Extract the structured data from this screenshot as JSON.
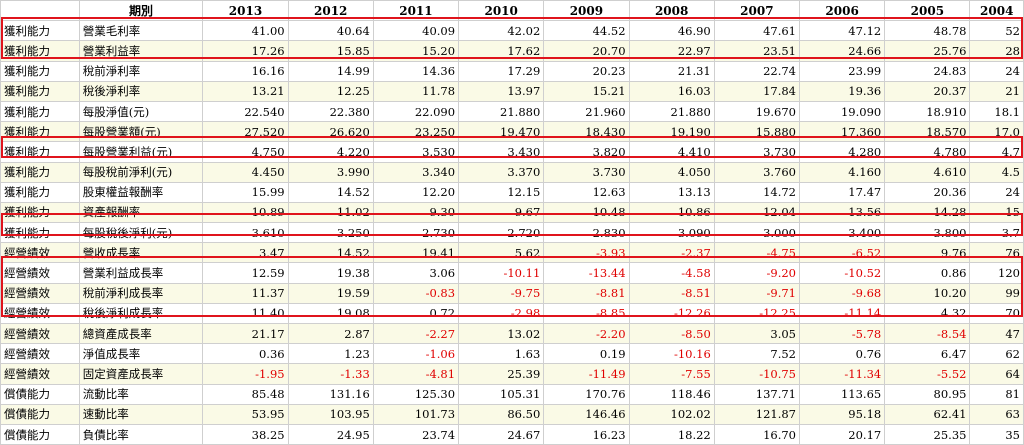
{
  "header": {
    "blank": "",
    "period_label": "期別",
    "years": [
      "2013",
      "2012",
      "2011",
      "2010",
      "2009",
      "2008",
      "2007",
      "2006",
      "2005",
      "2004"
    ]
  },
  "rows": [
    {
      "cat": "獲利能力",
      "name": "營業毛利率",
      "values": [
        "41.00",
        "40.64",
        "40.09",
        "42.02",
        "44.52",
        "46.90",
        "47.61",
        "47.12",
        "48.78",
        "52"
      ]
    },
    {
      "cat": "獲利能力",
      "name": "營業利益率",
      "values": [
        "17.26",
        "15.85",
        "15.20",
        "17.62",
        "20.70",
        "22.97",
        "23.51",
        "24.66",
        "25.76",
        "28"
      ]
    },
    {
      "cat": "獲利能力",
      "name": "稅前淨利率",
      "values": [
        "16.16",
        "14.99",
        "14.36",
        "17.29",
        "20.23",
        "21.31",
        "22.74",
        "23.99",
        "24.83",
        "24"
      ]
    },
    {
      "cat": "獲利能力",
      "name": "稅後淨利率",
      "values": [
        "13.21",
        "12.25",
        "11.78",
        "13.97",
        "15.21",
        "16.03",
        "17.84",
        "19.36",
        "20.37",
        "21"
      ]
    },
    {
      "cat": "獲利能力",
      "name": "每股淨值(元)",
      "values": [
        "22.540",
        "22.380",
        "22.090",
        "21.880",
        "21.960",
        "21.880",
        "19.670",
        "19.090",
        "18.910",
        "18.1"
      ]
    },
    {
      "cat": "獲利能力",
      "name": "每股營業額(元)",
      "values": [
        "27.520",
        "26.620",
        "23.250",
        "19.470",
        "18.430",
        "19.190",
        "15.880",
        "17.360",
        "18.570",
        "17.0"
      ]
    },
    {
      "cat": "獲利能力",
      "name": "每股營業利益(元)",
      "values": [
        "4.750",
        "4.220",
        "3.530",
        "3.430",
        "3.820",
        "4.410",
        "3.730",
        "4.280",
        "4.780",
        "4.7"
      ]
    },
    {
      "cat": "獲利能力",
      "name": "每股稅前淨利(元)",
      "values": [
        "4.450",
        "3.990",
        "3.340",
        "3.370",
        "3.730",
        "4.050",
        "3.760",
        "4.160",
        "4.610",
        "4.5"
      ]
    },
    {
      "cat": "獲利能力",
      "name": "股東權益報酬率",
      "values": [
        "15.99",
        "14.52",
        "12.20",
        "12.15",
        "12.63",
        "13.13",
        "14.72",
        "17.47",
        "20.36",
        "24"
      ]
    },
    {
      "cat": "獲利能力",
      "name": "資產報酬率",
      "values": [
        "10.89",
        "11.02",
        "9.30",
        "9.67",
        "10.48",
        "10.86",
        "12.04",
        "13.56",
        "14.28",
        "15"
      ]
    },
    {
      "cat": "獲利能力",
      "name": "每股稅後淨利(元)",
      "values": [
        "3.610",
        "3.250",
        "2.730",
        "2.720",
        "2.830",
        "3.090",
        "3.000",
        "3.400",
        "3.800",
        "3.7"
      ]
    },
    {
      "cat": "經營績效",
      "name": "營收成長率",
      "values": [
        "3.47",
        "14.52",
        "19.41",
        "5.62",
        "-3.93",
        "-2.37",
        "-4.75",
        "-6.52",
        "9.76",
        "76"
      ]
    },
    {
      "cat": "經營績效",
      "name": "營業利益成長率",
      "values": [
        "12.59",
        "19.38",
        "3.06",
        "-10.11",
        "-13.44",
        "-4.58",
        "-9.20",
        "-10.52",
        "0.86",
        "120"
      ]
    },
    {
      "cat": "經營績效",
      "name": "稅前淨利成長率",
      "values": [
        "11.37",
        "19.59",
        "-0.83",
        "-9.75",
        "-8.81",
        "-8.51",
        "-9.71",
        "-9.68",
        "10.20",
        "99"
      ]
    },
    {
      "cat": "經營績效",
      "name": "稅後淨利成長率",
      "values": [
        "11.40",
        "19.08",
        "0.72",
        "-2.98",
        "-8.85",
        "-12.26",
        "-12.25",
        "-11.14",
        "4.32",
        "70"
      ]
    },
    {
      "cat": "經營績效",
      "name": "總資產成長率",
      "values": [
        "21.17",
        "2.87",
        "-2.27",
        "13.02",
        "-2.20",
        "-8.50",
        "3.05",
        "-5.78",
        "-8.54",
        "47"
      ]
    },
    {
      "cat": "經營績效",
      "name": "淨值成長率",
      "values": [
        "0.36",
        "1.23",
        "-1.06",
        "1.63",
        "0.19",
        "-10.16",
        "7.52",
        "0.76",
        "6.47",
        "62"
      ]
    },
    {
      "cat": "經營績效",
      "name": "固定資產成長率",
      "values": [
        "-1.95",
        "-1.33",
        "-4.81",
        "25.39",
        "-11.49",
        "-7.55",
        "-10.75",
        "-11.34",
        "-5.52",
        "64"
      ]
    },
    {
      "cat": "償債能力",
      "name": "流動比率",
      "values": [
        "85.48",
        "131.16",
        "125.30",
        "105.31",
        "170.76",
        "118.46",
        "137.71",
        "113.65",
        "80.95",
        "81"
      ]
    },
    {
      "cat": "償債能力",
      "name": "速動比率",
      "values": [
        "53.95",
        "103.95",
        "101.73",
        "86.50",
        "146.46",
        "102.02",
        "121.87",
        "95.18",
        "62.41",
        "63"
      ]
    },
    {
      "cat": "償債能力",
      "name": "負債比率",
      "values": [
        "38.25",
        "24.95",
        "23.74",
        "24.67",
        "16.23",
        "18.22",
        "16.70",
        "20.17",
        "25.35",
        "35"
      ]
    }
  ],
  "colors": {
    "negative": "#e00000",
    "row_alt": "#fafae6",
    "highlight": "#e0141c",
    "grid": "#cfcfcf"
  }
}
